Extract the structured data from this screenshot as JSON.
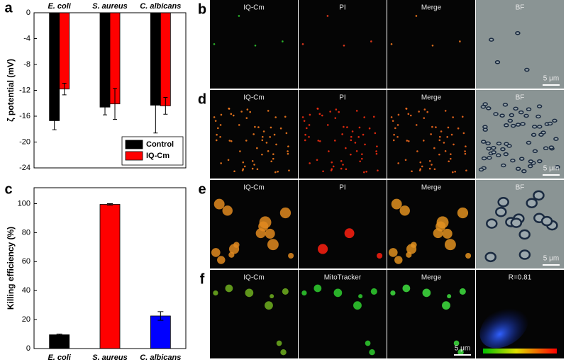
{
  "chart_data": [
    {
      "type": "bar",
      "label": "a",
      "ylabel": "ζ potential (mV)",
      "categories": [
        "E. coli",
        "S. aureus",
        "C. albicans"
      ],
      "series": [
        {
          "name": "Control",
          "color": "#000000",
          "values": [
            -16.7,
            -14.6,
            -14.3
          ],
          "errors": [
            1.4,
            1.2,
            4.3
          ]
        },
        {
          "name": "IQ-Cm",
          "color": "#ff0000",
          "values": [
            -11.8,
            -14.1,
            -14.4
          ],
          "errors": [
            0.9,
            2.4,
            1.3
          ]
        }
      ],
      "ylim": [
        -24,
        0
      ],
      "yticks": [
        -24,
        -20,
        -16,
        -12,
        -8,
        -4,
        0
      ],
      "legend": "lower right"
    },
    {
      "type": "bar",
      "label": "c",
      "ylabel": "Killing efficiency (%)",
      "categories": [
        "E. coli",
        "S. aureus",
        "C. albicans"
      ],
      "values": [
        9.5,
        99.5,
        22.5
      ],
      "errors": [
        0.5,
        0.5,
        3
      ],
      "colors": [
        "#000000",
        "#ff0000",
        "#0000ff"
      ],
      "ylim": [
        0,
        111
      ],
      "yticks": [
        0,
        20,
        40,
        60,
        80,
        100
      ]
    }
  ],
  "micrographs": [
    {
      "letter": "b",
      "labels": [
        "IQ-Cm",
        "PI",
        "Merge",
        "BF"
      ],
      "scale_bar": "5 μm"
    },
    {
      "letter": "d",
      "labels": [
        "IQ-Cm",
        "PI",
        "Merge",
        "BF"
      ],
      "scale_bar": "5 μm"
    },
    {
      "letter": "e",
      "labels": [
        "IQ-Cm",
        "PI",
        "Merge",
        "BF"
      ],
      "scale_bar": "5 μm"
    },
    {
      "letter": "f",
      "labels": [
        "IQ-Cm",
        "MitoTracker",
        "Merge",
        "R=0.81"
      ],
      "scale_bar": "5 μm"
    }
  ]
}
